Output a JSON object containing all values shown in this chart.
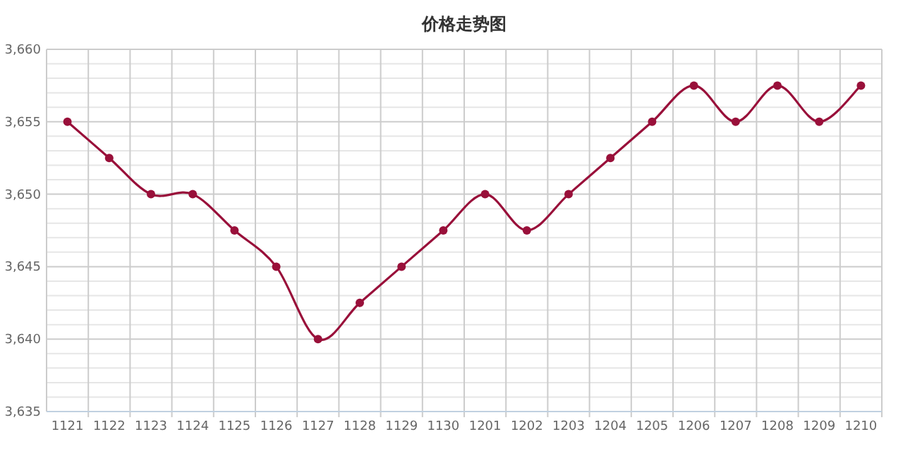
{
  "chart_data": {
    "type": "line",
    "title": "价格走势图",
    "categories": [
      "1121",
      "1122",
      "1123",
      "1124",
      "1125",
      "1126",
      "1127",
      "1128",
      "1129",
      "1130",
      "1201",
      "1202",
      "1203",
      "1204",
      "1205",
      "1206",
      "1207",
      "1208",
      "1209",
      "1210"
    ],
    "series": [
      {
        "color": "#99103a",
        "values": [
          3655,
          3652.5,
          3650,
          3650,
          3647.5,
          3645,
          3640,
          3642.5,
          3645,
          3647.5,
          3650,
          3647.5,
          3650,
          3652.5,
          3655,
          3657.5,
          3655,
          3657.5,
          3655,
          3657.5
        ]
      }
    ],
    "ylim": [
      3635,
      3660
    ],
    "yticks": [
      {
        "value": 3635,
        "label": "3,635"
      },
      {
        "value": 3636,
        "label": null
      },
      {
        "value": 3637,
        "label": null
      },
      {
        "value": 3638,
        "label": null
      },
      {
        "value": 3639,
        "label": null
      },
      {
        "value": 3640,
        "label": "3,640"
      },
      {
        "value": 3641,
        "label": null
      },
      {
        "value": 3642,
        "label": null
      },
      {
        "value": 3643,
        "label": null
      },
      {
        "value": 3644,
        "label": null
      },
      {
        "value": 3645,
        "label": "3,645"
      },
      {
        "value": 3646,
        "label": null
      },
      {
        "value": 3647,
        "label": null
      },
      {
        "value": 3648,
        "label": null
      },
      {
        "value": 3649,
        "label": null
      },
      {
        "value": 3650,
        "label": "3,650"
      },
      {
        "value": 3651,
        "label": null
      },
      {
        "value": 3652,
        "label": null
      },
      {
        "value": 3653,
        "label": null
      },
      {
        "value": 3654,
        "label": null
      },
      {
        "value": 3655,
        "label": "3,655"
      },
      {
        "value": 3656,
        "label": null
      },
      {
        "value": 3657,
        "label": null
      },
      {
        "value": 3658,
        "label": null
      },
      {
        "value": 3659,
        "label": null
      },
      {
        "value": 3660,
        "label": "3,660"
      }
    ],
    "grid": true,
    "marker": "circle",
    "line_style": "solid"
  }
}
